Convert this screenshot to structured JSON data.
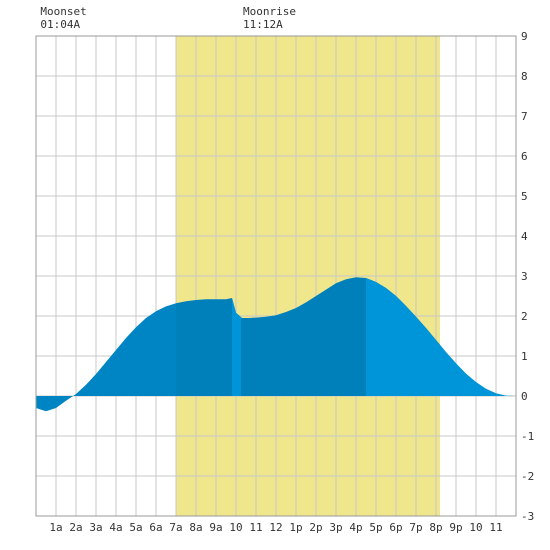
{
  "chart_data": {
    "type": "area",
    "title": "",
    "xlabel": "",
    "ylabel": "",
    "xlim": [
      0,
      24
    ],
    "ylim": [
      -3,
      9
    ],
    "grid": true,
    "x_tick_positions": [
      1,
      2,
      3,
      4,
      5,
      6,
      7,
      8,
      9,
      10,
      11,
      12,
      13,
      14,
      15,
      16,
      17,
      18,
      19,
      20,
      21,
      22,
      23
    ],
    "x_ticks": [
      "1a",
      "2a",
      "3a",
      "4a",
      "5a",
      "6a",
      "7a",
      "8a",
      "9a",
      "10",
      "11",
      "12",
      "1p",
      "2p",
      "3p",
      "4p",
      "5p",
      "6p",
      "7p",
      "8p",
      "9p",
      "10",
      "11"
    ],
    "y_ticks": [
      "-3",
      "-2",
      "-1",
      "0",
      "1",
      "2",
      "3",
      "4",
      "5",
      "6",
      "7",
      "8",
      "9"
    ],
    "daylight_band": {
      "start": 7.0,
      "end": 20.2,
      "color": "#f0e68c"
    },
    "annotations": [
      {
        "label": "Moonset",
        "time": "01:04A",
        "x": 1.07
      },
      {
        "label": "Moonrise",
        "time": "11:12A",
        "x": 11.2
      }
    ],
    "colors": {
      "night_fill": "#0085c4",
      "day_fill": "#0094d8",
      "moon_fill": "#0080bb",
      "grid": "#c8c8c8",
      "band": "#f0e68c"
    },
    "series": [
      {
        "x": [
          0,
          0.5,
          1,
          1.5,
          2,
          2.5,
          3,
          3.5,
          4,
          4.5,
          5,
          5.5,
          6,
          6.5,
          7,
          7.5,
          8,
          8.5,
          9,
          9.5,
          9.8,
          10,
          10.3,
          10.6,
          11,
          11.5,
          12,
          12.5,
          13,
          13.5,
          14,
          14.5,
          15,
          15.5,
          16,
          16.5,
          17,
          17.5,
          18,
          18.5,
          19,
          19.5,
          20,
          20.5,
          21,
          21.5,
          22,
          22.5,
          23,
          23.5,
          24
        ],
        "values": [
          -0.3,
          -0.38,
          -0.3,
          -0.12,
          0.05,
          0.28,
          0.55,
          0.85,
          1.15,
          1.45,
          1.72,
          1.95,
          2.12,
          2.24,
          2.32,
          2.37,
          2.4,
          2.42,
          2.42,
          2.42,
          2.45,
          2.08,
          1.95,
          1.95,
          1.96,
          1.98,
          2.02,
          2.1,
          2.2,
          2.34,
          2.5,
          2.66,
          2.82,
          2.92,
          2.97,
          2.95,
          2.85,
          2.7,
          2.5,
          2.25,
          1.98,
          1.7,
          1.4,
          1.1,
          0.82,
          0.56,
          0.35,
          0.18,
          0.07,
          0.01,
          0.0
        ]
      }
    ]
  }
}
